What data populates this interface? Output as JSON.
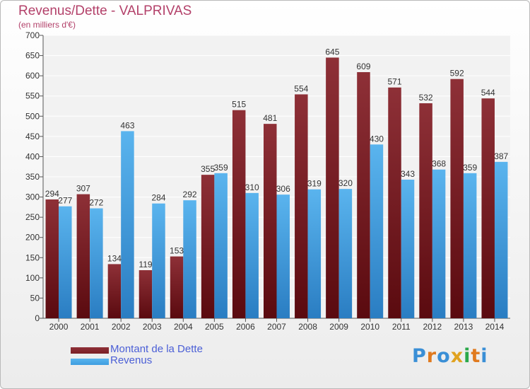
{
  "title": "Revenus/Dette - VALPRIVAS",
  "subtitle": "(en milliers d'€)",
  "logo_text": "Proxiti",
  "colors": {
    "dette": "#7a1e24",
    "revenus": "#3e9ee0",
    "title": "#b3416a",
    "legend_text": "#4b5fd6"
  },
  "chart_data": {
    "type": "bar",
    "categories": [
      "2000",
      "2001",
      "2002",
      "2003",
      "2004",
      "2005",
      "2006",
      "2007",
      "2008",
      "2009",
      "2010",
      "2011",
      "2012",
      "2013",
      "2014"
    ],
    "series": [
      {
        "name": "Montant de la Dette",
        "values": [
          294,
          307,
          134,
          119,
          153,
          355,
          515,
          481,
          554,
          645,
          609,
          571,
          532,
          592,
          544
        ]
      },
      {
        "name": "Revenus",
        "values": [
          277,
          272,
          463,
          284,
          292,
          359,
          310,
          306,
          319,
          320,
          430,
          343,
          368,
          359,
          387
        ]
      }
    ],
    "ylim": [
      0,
      700
    ],
    "yticks": [
      0,
      50,
      100,
      150,
      200,
      250,
      300,
      350,
      400,
      450,
      500,
      550,
      600,
      650,
      700
    ],
    "grid": true,
    "legend": "bottom-left"
  }
}
